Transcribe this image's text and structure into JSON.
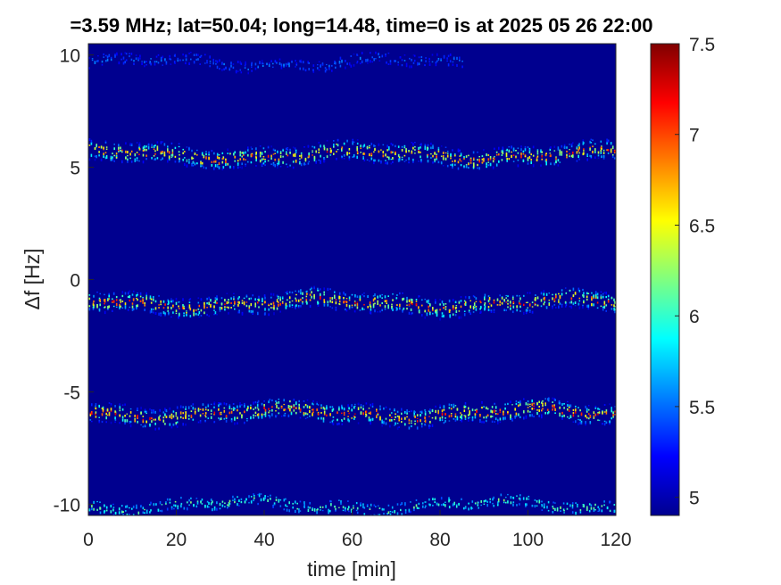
{
  "chart_data": {
    "type": "heatmap",
    "title": "=3.59 MHz;  lat=50.04; long=14.48, time=0 is at 2025 05 26 22:00",
    "xlabel": "time [min]",
    "ylabel": "Δf [Hz]",
    "xlim": [
      0,
      120
    ],
    "ylim": [
      -10.5,
      10.5
    ],
    "x_ticks": [
      "0",
      "20",
      "40",
      "60",
      "80",
      "100",
      "120"
    ],
    "y_ticks": [
      "-10",
      "-5",
      "0",
      "5",
      "10"
    ],
    "colorbar": {
      "clim": [
        4.9,
        7.5
      ],
      "ticks": [
        "5",
        "5.5",
        "6",
        "6.5",
        "7",
        "7.5"
      ],
      "colormap": "jet"
    },
    "background_value": 4.9,
    "bands": [
      {
        "center_hz": 9.7,
        "peak_value": 5.6,
        "time_range": [
          0,
          85
        ]
      },
      {
        "center_hz": 5.6,
        "peak_value": 7.3,
        "time_range": [
          0,
          120
        ]
      },
      {
        "center_hz": -1.0,
        "peak_value": 7.3,
        "time_range": [
          0,
          120
        ]
      },
      {
        "center_hz": -5.9,
        "peak_value": 7.4,
        "time_range": [
          0,
          120
        ]
      },
      {
        "center_hz": -10.0,
        "peak_value": 6.3,
        "time_range": [
          0,
          120
        ]
      }
    ]
  }
}
